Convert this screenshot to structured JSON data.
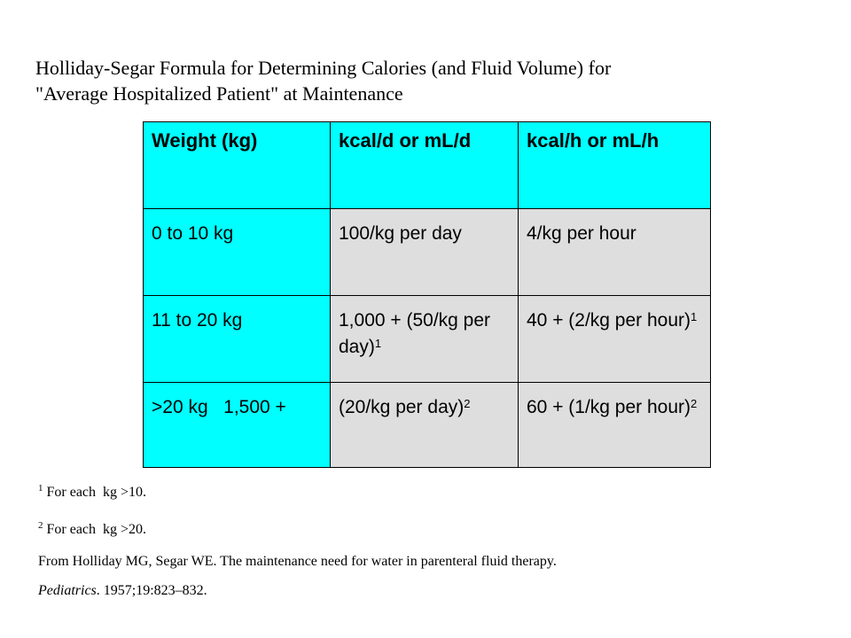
{
  "title": {
    "line1": "Holliday-Segar Formula for Determining Calories (and Fluid Volume) for",
    "line2": "\"Average Hospitalized Patient\" at Maintenance"
  },
  "table": {
    "headers": [
      "Weight (kg)",
      "kcal/d or mL/d",
      "kcal/h or mL/h"
    ],
    "rows": [
      {
        "weight": "0 to 10 kg",
        "per_day": "100/kg per day",
        "per_day_sup": "",
        "per_hour": "4/kg per hour",
        "per_hour_sup": ""
      },
      {
        "weight": "11 to 20 kg",
        "per_day": "1,000 + (50/kg per day)",
        "per_day_sup": "1",
        "per_hour": "40 + (2/kg per hour)",
        "per_hour_sup": "1"
      },
      {
        "weight": ">20 kg   1,500 +",
        "per_day": "(20/kg per day)",
        "per_day_sup": "2",
        "per_hour": "60 + (1/kg per hour)",
        "per_hour_sup": "2"
      }
    ],
    "colors": {
      "header_bg": "#00ffff",
      "weight_col_bg": "#00ffff",
      "data_bg": "#dedede"
    }
  },
  "footnotes": [
    {
      "mark": "1",
      "text": " For each  kg >10."
    },
    {
      "mark": "2",
      "text": " For each  kg >20."
    }
  ],
  "citation": {
    "line1": "From Holliday MG, Segar WE. The maintenance need for water in parenteral fluid therapy.",
    "journal": "Pediatrics",
    "line2_rest": ". 1957;19:823–832."
  }
}
